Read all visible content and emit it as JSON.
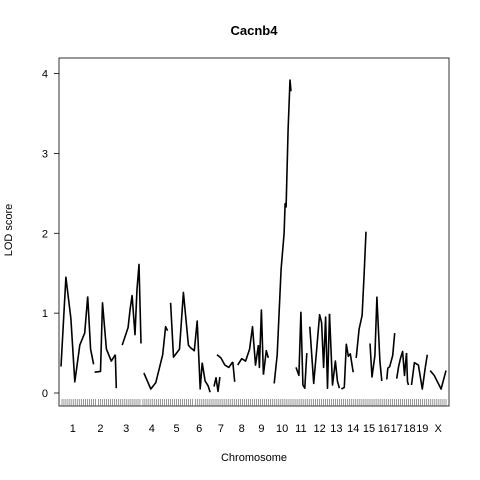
{
  "chart_data": {
    "type": "line",
    "title": "Cacnb4",
    "xlabel": "Chromosome",
    "ylabel": "LOD score",
    "ylim": [
      0,
      4.12
    ],
    "yticks": [
      0,
      1,
      2,
      3,
      4
    ],
    "grid": false,
    "legend": "none",
    "x_unit": "genome position (index)",
    "xlim": [
      0,
      391
    ],
    "chromosome_labels": [
      "1",
      "2",
      "3",
      "4",
      "5",
      "6",
      "7",
      "8",
      "9",
      "10",
      "11",
      "12",
      "13",
      "14",
      "15",
      "16",
      "17",
      "18",
      "19",
      "X"
    ],
    "series": [
      {
        "chromosome": "1",
        "x": [
          0,
          5,
          10,
          14,
          19,
          24,
          27
        ],
        "y": [
          0.33,
          1.45,
          0.93,
          0.14,
          0.6,
          0.75,
          1.21
        ]
      },
      {
        "chromosome": "1b",
        "x": [
          27,
          30,
          33
        ],
        "y": [
          1.21,
          0.55,
          0.36
        ]
      },
      {
        "chromosome": "2",
        "x": [
          34,
          40,
          42,
          46,
          51,
          55
        ],
        "y": [
          0.26,
          0.27,
          1.13,
          0.55,
          0.4,
          0.48
        ]
      },
      {
        "chromosome": "2b",
        "x": [
          55,
          56
        ],
        "y": [
          0.48,
          0.06
        ]
      },
      {
        "chromosome": "3",
        "x": [
          62,
          68,
          70,
          72,
          75,
          77,
          79,
          81
        ],
        "y": [
          0.6,
          0.82,
          1.05,
          1.22,
          0.73,
          1.3,
          1.61,
          0.62
        ]
      },
      {
        "chromosome": "4",
        "x": [
          84,
          91,
          96,
          103,
          106,
          108
        ],
        "y": [
          0.25,
          0.05,
          0.13,
          0.48,
          0.83,
          0.78
        ]
      },
      {
        "chromosome": "5",
        "x": [
          111,
          114,
          120,
          124,
          129,
          131
        ],
        "y": [
          1.13,
          0.45,
          0.55,
          1.26,
          0.6,
          0.57
        ]
      },
      {
        "chromosome": "5b",
        "x": [
          131,
          135,
          138,
          141,
          143
        ],
        "y": [
          0.57,
          0.53,
          0.9,
          0.05,
          0.38
        ]
      },
      {
        "chromosome": "6",
        "x": [
          143,
          146,
          149,
          151
        ],
        "y": [
          0.38,
          0.15,
          0.09,
          0.01
        ]
      },
      {
        "chromosome": "6b",
        "x": [
          155,
          157,
          159,
          161
        ],
        "y": [
          0.08,
          0.19,
          0.02,
          0.2
        ]
      },
      {
        "chromosome": "7",
        "x": [
          158,
          162,
          166,
          170,
          174
        ],
        "y": [
          0.48,
          0.44,
          0.35,
          0.32,
          0.39
        ]
      },
      {
        "chromosome": "7b",
        "x": [
          174,
          176
        ],
        "y": [
          0.39,
          0.14
        ]
      },
      {
        "chromosome": "8",
        "x": [
          179,
          183,
          187,
          191,
          194,
          197,
          200
        ],
        "y": [
          0.35,
          0.43,
          0.4,
          0.55,
          0.83,
          0.35,
          0.6
        ]
      },
      {
        "chromosome": "8b",
        "x": [
          200,
          201,
          203,
          205
        ],
        "y": [
          0.6,
          0.32,
          1.04,
          0.23
        ]
      },
      {
        "chromosome": "9",
        "x": [
          205,
          208,
          210
        ],
        "y": [
          0.23,
          0.53,
          0.44
        ]
      },
      {
        "chromosome": "10",
        "x": [
          216,
          219,
          223,
          226,
          227,
          228,
          230,
          232,
          233
        ],
        "y": [
          0.12,
          0.48,
          1.55,
          2.0,
          2.37,
          2.33,
          3.3,
          3.92,
          3.78
        ]
      },
      {
        "chromosome": "11",
        "x": [
          238,
          241,
          243,
          245,
          247,
          249
        ],
        "y": [
          0.32,
          0.22,
          1.01,
          0.1,
          0.06,
          0.5
        ]
      },
      {
        "chromosome": "12",
        "x": [
          252,
          256,
          259,
          262,
          264,
          266,
          268,
          270,
          272
        ],
        "y": [
          0.83,
          0.12,
          0.55,
          0.98,
          0.88,
          0.32,
          0.95,
          0.06,
          0.99
        ]
      },
      {
        "chromosome": "13",
        "x": [
          272,
          275,
          278,
          280,
          282
        ],
        "y": [
          0.99,
          0.1,
          0.4,
          0.15,
          0.06
        ]
      },
      {
        "chromosome": "14",
        "x": [
          284,
          287,
          289,
          291,
          293,
          296
        ],
        "y": [
          0.05,
          0.07,
          0.61,
          0.46,
          0.49,
          0.26
        ]
      },
      {
        "chromosome": "15",
        "x": [
          299,
          302,
          305,
          307,
          309
        ],
        "y": [
          0.44,
          0.8,
          0.97,
          1.48,
          2.02
        ]
      },
      {
        "chromosome": "16",
        "x": [
          313,
          315,
          318,
          320,
          323,
          325
        ],
        "y": [
          0.62,
          0.2,
          0.47,
          1.2,
          0.4,
          0.15
        ]
      },
      {
        "chromosome": "17",
        "x": [
          330,
          331,
          333,
          336,
          338
        ],
        "y": [
          0.17,
          0.31,
          0.33,
          0.47,
          0.75
        ]
      },
      {
        "chromosome": "18",
        "x": [
          340,
          342,
          344,
          346,
          348,
          350
        ],
        "y": [
          0.18,
          0.33,
          0.44,
          0.52,
          0.22,
          0.5
        ]
      },
      {
        "chromosome": "18b",
        "x": [
          350,
          351,
          352
        ],
        "y": [
          0.5,
          0.14,
          0.1
        ]
      },
      {
        "chromosome": "19",
        "x": [
          355,
          358,
          362,
          366,
          369
        ],
        "y": [
          0.1,
          0.38,
          0.35,
          0.05,
          0.32
        ]
      },
      {
        "chromosome": "19b",
        "x": [
          369,
          371
        ],
        "y": [
          0.32,
          0.48
        ]
      },
      {
        "chromosome": "X",
        "x": [
          374,
          378,
          385,
          390
        ],
        "y": [
          0.28,
          0.22,
          0.05,
          0.28
        ]
      }
    ],
    "chromosome_label_x": [
      12,
      40,
      66,
      92,
      117,
      140,
      162,
      183,
      203,
      224,
      243,
      262,
      279,
      296,
      312,
      327,
      340,
      353,
      366,
      382
    ],
    "markers_x": [
      1,
      3,
      5,
      7,
      9,
      11,
      13,
      15,
      17,
      19,
      21,
      23,
      25,
      27,
      29,
      31,
      33,
      35,
      38,
      40,
      42,
      44,
      46,
      48,
      50,
      52,
      54,
      56,
      58,
      60,
      62,
      64,
      66,
      68,
      70,
      72,
      74,
      76,
      78,
      80,
      83,
      85,
      87,
      89,
      91,
      93,
      95,
      97,
      99,
      101,
      103,
      105,
      107,
      109,
      111,
      113,
      115,
      117,
      119,
      121,
      123,
      125,
      127,
      129,
      131,
      133,
      136,
      138,
      140,
      142,
      144,
      146,
      148,
      150,
      152,
      154,
      156,
      158,
      160,
      162,
      164,
      166,
      168,
      170,
      172,
      174,
      176,
      178,
      180,
      182,
      184,
      186,
      188,
      190,
      192,
      194,
      196,
      198,
      200,
      202,
      204,
      206,
      208,
      210,
      212,
      214,
      216,
      218,
      220,
      222,
      224,
      226,
      228,
      230,
      232,
      234,
      236,
      238,
      240,
      242,
      244,
      246,
      248,
      250,
      252,
      254,
      256,
      258,
      260,
      262,
      264,
      266,
      268,
      270,
      272,
      274,
      276,
      278,
      280,
      282,
      284,
      286,
      288,
      290,
      292,
      294,
      296,
      298,
      300,
      302,
      304,
      306,
      308,
      310,
      312,
      314,
      316,
      318,
      320,
      322,
      324,
      326,
      328,
      330,
      332,
      334,
      336,
      338,
      340,
      342,
      344,
      346,
      348,
      350,
      352,
      354,
      356,
      358,
      360,
      362,
      364,
      366,
      368,
      370,
      372,
      374,
      376,
      378,
      380,
      382,
      384,
      386,
      388,
      390
    ]
  }
}
